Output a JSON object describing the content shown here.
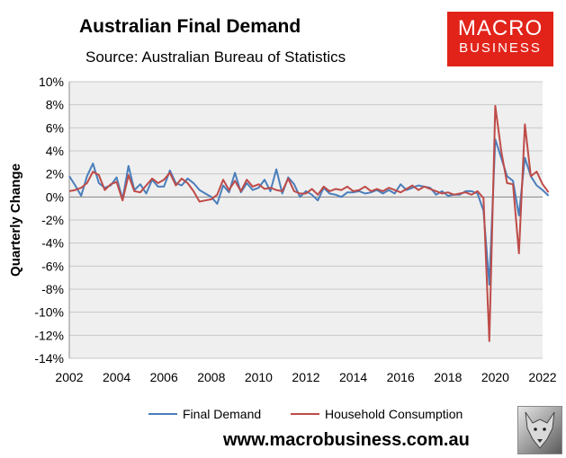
{
  "header": {
    "title": "Australian Final Demand",
    "subtitle": "Source: Australian Bureau of Statistics"
  },
  "logo": {
    "line1": "MACRO",
    "line2": "BUSINESS",
    "color": "#e2231a"
  },
  "footer": {
    "url": "www.macrobusiness.com.au"
  },
  "chart_data": {
    "type": "line",
    "ylabel": "Quarterly Change",
    "xlabel": "",
    "ylim": [
      -14,
      10
    ],
    "xlim": [
      2002,
      2022
    ],
    "yticks": [
      "10%",
      "8%",
      "6%",
      "4%",
      "2%",
      "0%",
      "-2%",
      "-4%",
      "-6%",
      "-8%",
      "-10%",
      "-12%",
      "-14%"
    ],
    "xticks": [
      "2002",
      "2004",
      "2006",
      "2008",
      "2010",
      "2012",
      "2014",
      "2016",
      "2018",
      "2020",
      "2022"
    ],
    "grid": "horizontal",
    "legend": "bottom",
    "x_start": 2002.0,
    "x_step": 0.25,
    "series": [
      {
        "name": "Final Demand",
        "color": "#4a7ebb",
        "values": [
          1.8,
          1.0,
          0.1,
          1.8,
          2.9,
          1.2,
          0.8,
          1.0,
          1.7,
          -0.2,
          2.7,
          0.6,
          1.1,
          0.3,
          1.5,
          0.9,
          0.9,
          2.3,
          1.2,
          1.0,
          1.6,
          1.2,
          0.6,
          0.3,
          0.0,
          -0.6,
          1.0,
          0.4,
          2.1,
          0.4,
          1.2,
          0.6,
          0.8,
          1.5,
          0.5,
          2.4,
          0.3,
          1.7,
          1.1,
          0.0,
          0.5,
          0.2,
          -0.3,
          0.8,
          0.3,
          0.2,
          0.0,
          0.4,
          0.4,
          0.5,
          0.3,
          0.4,
          0.6,
          0.3,
          0.6,
          0.3,
          1.1,
          0.6,
          0.8,
          1.0,
          0.9,
          0.8,
          0.2,
          0.5,
          0.1,
          0.2,
          0.2,
          0.5,
          0.5,
          0.3,
          -1.2,
          -7.6,
          5.0,
          3.4,
          1.8,
          1.4,
          -1.6,
          3.4,
          1.8,
          1.0,
          0.6,
          0.1
        ]
      },
      {
        "name": "Household Consumption",
        "color": "#be4b48",
        "values": [
          0.5,
          0.6,
          0.8,
          1.2,
          2.2,
          1.9,
          0.6,
          1.1,
          1.3,
          -0.3,
          1.9,
          0.5,
          0.4,
          1.0,
          1.6,
          1.2,
          1.5,
          2.1,
          1.0,
          1.6,
          1.2,
          0.5,
          -0.4,
          -0.3,
          -0.2,
          0.2,
          1.5,
          0.6,
          1.4,
          0.5,
          1.5,
          0.9,
          1.1,
          0.7,
          0.8,
          0.6,
          0.5,
          1.6,
          0.5,
          0.3,
          0.3,
          0.7,
          0.2,
          0.9,
          0.5,
          0.7,
          0.6,
          0.9,
          0.5,
          0.6,
          0.9,
          0.5,
          0.7,
          0.5,
          0.8,
          0.6,
          0.4,
          0.7,
          1.0,
          0.6,
          0.9,
          0.7,
          0.5,
          0.3,
          0.4,
          0.2,
          0.3,
          0.4,
          0.2,
          0.5,
          -0.1,
          -12.5,
          7.9,
          4.0,
          1.2,
          1.1,
          -4.9,
          6.3,
          1.8,
          2.2,
          1.1,
          0.4
        ]
      }
    ]
  }
}
